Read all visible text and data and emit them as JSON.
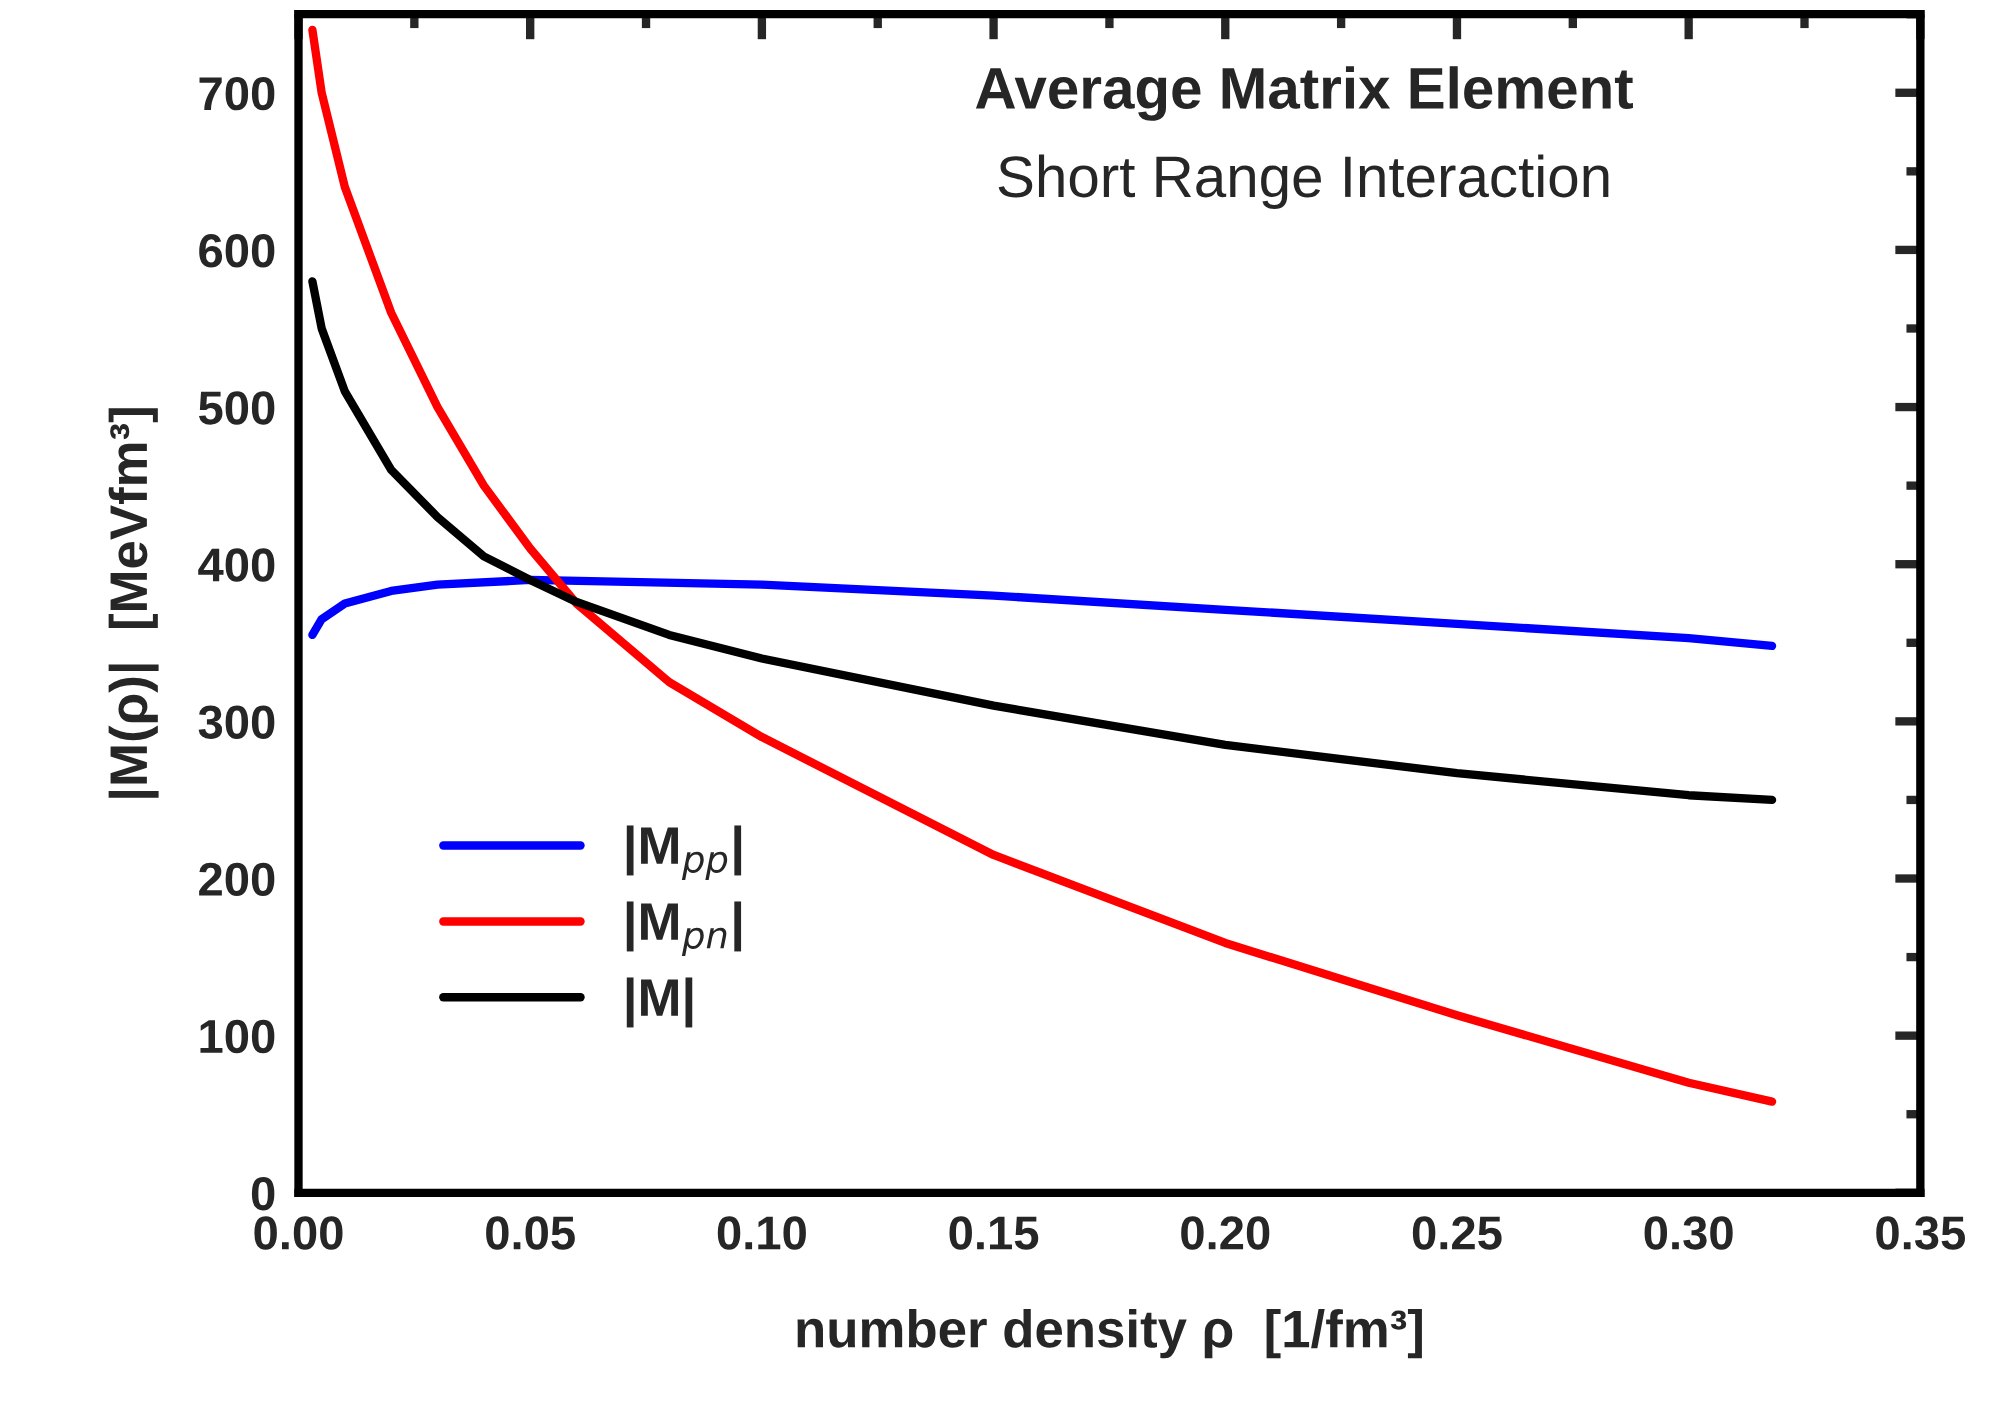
{
  "chart_data": {
    "type": "line",
    "title": "Average Matrix Element",
    "subtitle": "Short Range Interaction",
    "xlabel": "number density ρ  [1/fm³]",
    "ylabel": "|M(ρ)|  [MeVfm³]",
    "xlim": [
      0,
      0.35
    ],
    "xticks": [
      {
        "value": 0,
        "label": "0.00"
      },
      0.05,
      {
        "value": 0.1,
        "label": "0.10"
      },
      0.15,
      {
        "value": 0.2,
        "label": "0.20"
      },
      0.25,
      {
        "value": 0.3,
        "label": "0.30"
      },
      0.35
    ],
    "ylim": [
      0,
      750
    ],
    "yticks": [
      0,
      100,
      200,
      300,
      400,
      500,
      600,
      700
    ],
    "grid": false,
    "legend": "bottom left",
    "marker": "none",
    "line_style": "solid",
    "series": [
      {
        "name": "|M$_{pp}$|",
        "color": "#0000ff",
        "x": [
          0.003,
          0.005,
          0.01,
          0.02,
          0.03,
          0.05,
          0.1,
          0.15,
          0.2,
          0.25,
          0.3,
          0.318
        ],
        "values": [
          355,
          365,
          375,
          383,
          387,
          390,
          387,
          380,
          371,
          362,
          353,
          348
        ]
      },
      {
        "name": "|M$_{pn}$|",
        "color": "#ff0000",
        "x": [
          0.003,
          0.005,
          0.01,
          0.02,
          0.03,
          0.04,
          0.05,
          0.06,
          0.08,
          0.1,
          0.15,
          0.2,
          0.25,
          0.3,
          0.318
        ],
        "values": [
          740,
          700,
          640,
          560,
          500,
          450,
          410,
          375,
          325,
          290,
          215,
          159,
          113,
          70,
          58
        ]
      },
      {
        "name": "|M|",
        "color": "#000000",
        "x": [
          0.003,
          0.005,
          0.01,
          0.02,
          0.03,
          0.04,
          0.05,
          0.06,
          0.08,
          0.1,
          0.15,
          0.2,
          0.25,
          0.3,
          0.318
        ],
        "values": [
          580,
          550,
          510,
          460,
          430,
          405,
          390,
          376,
          355,
          340,
          310,
          285,
          267,
          253,
          250
        ]
      }
    ]
  }
}
